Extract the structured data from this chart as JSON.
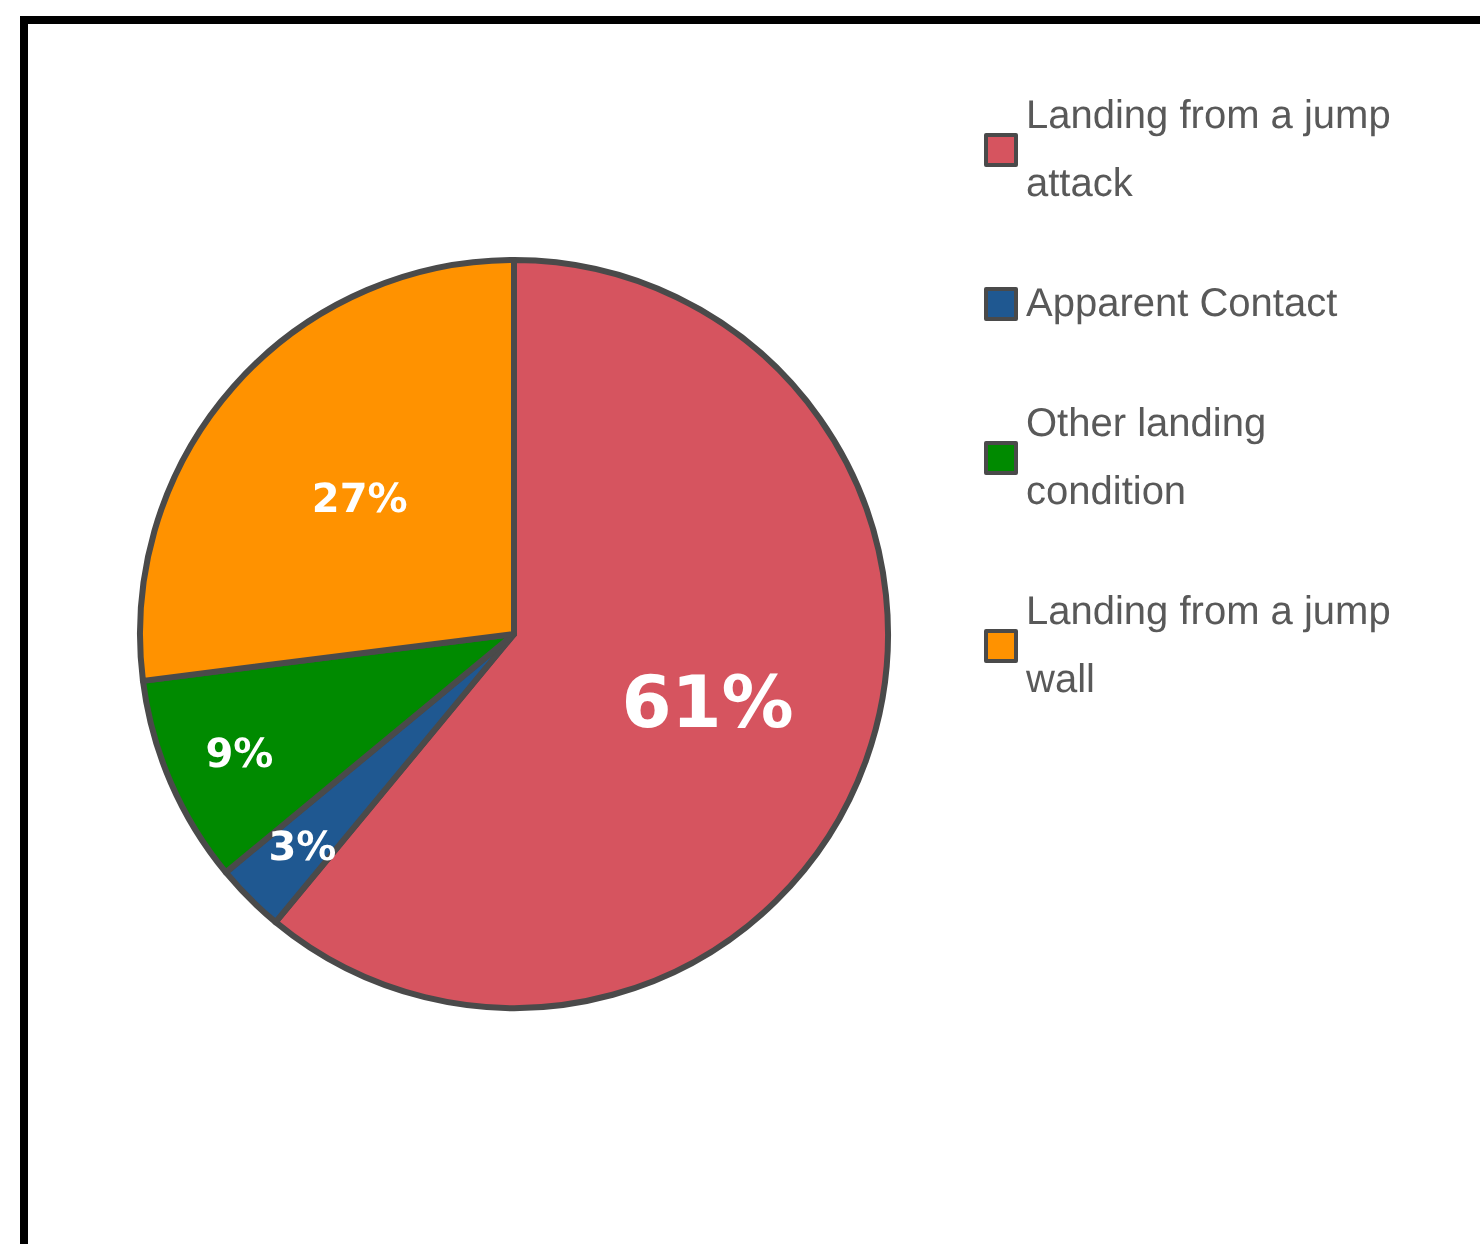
{
  "chart_data": {
    "type": "pie",
    "categories": [
      "Landing from a jump attack",
      "Apparent Contact",
      "Other landing condition",
      "Landing from a jump wall"
    ],
    "values": [
      61,
      3,
      9,
      27
    ],
    "colors": [
      "#d6545f",
      "#1f5891",
      "#008a00",
      "#ff9200"
    ],
    "value_labels": [
      "61%",
      "3%",
      "9%",
      "27%"
    ],
    "legend": "right"
  }
}
